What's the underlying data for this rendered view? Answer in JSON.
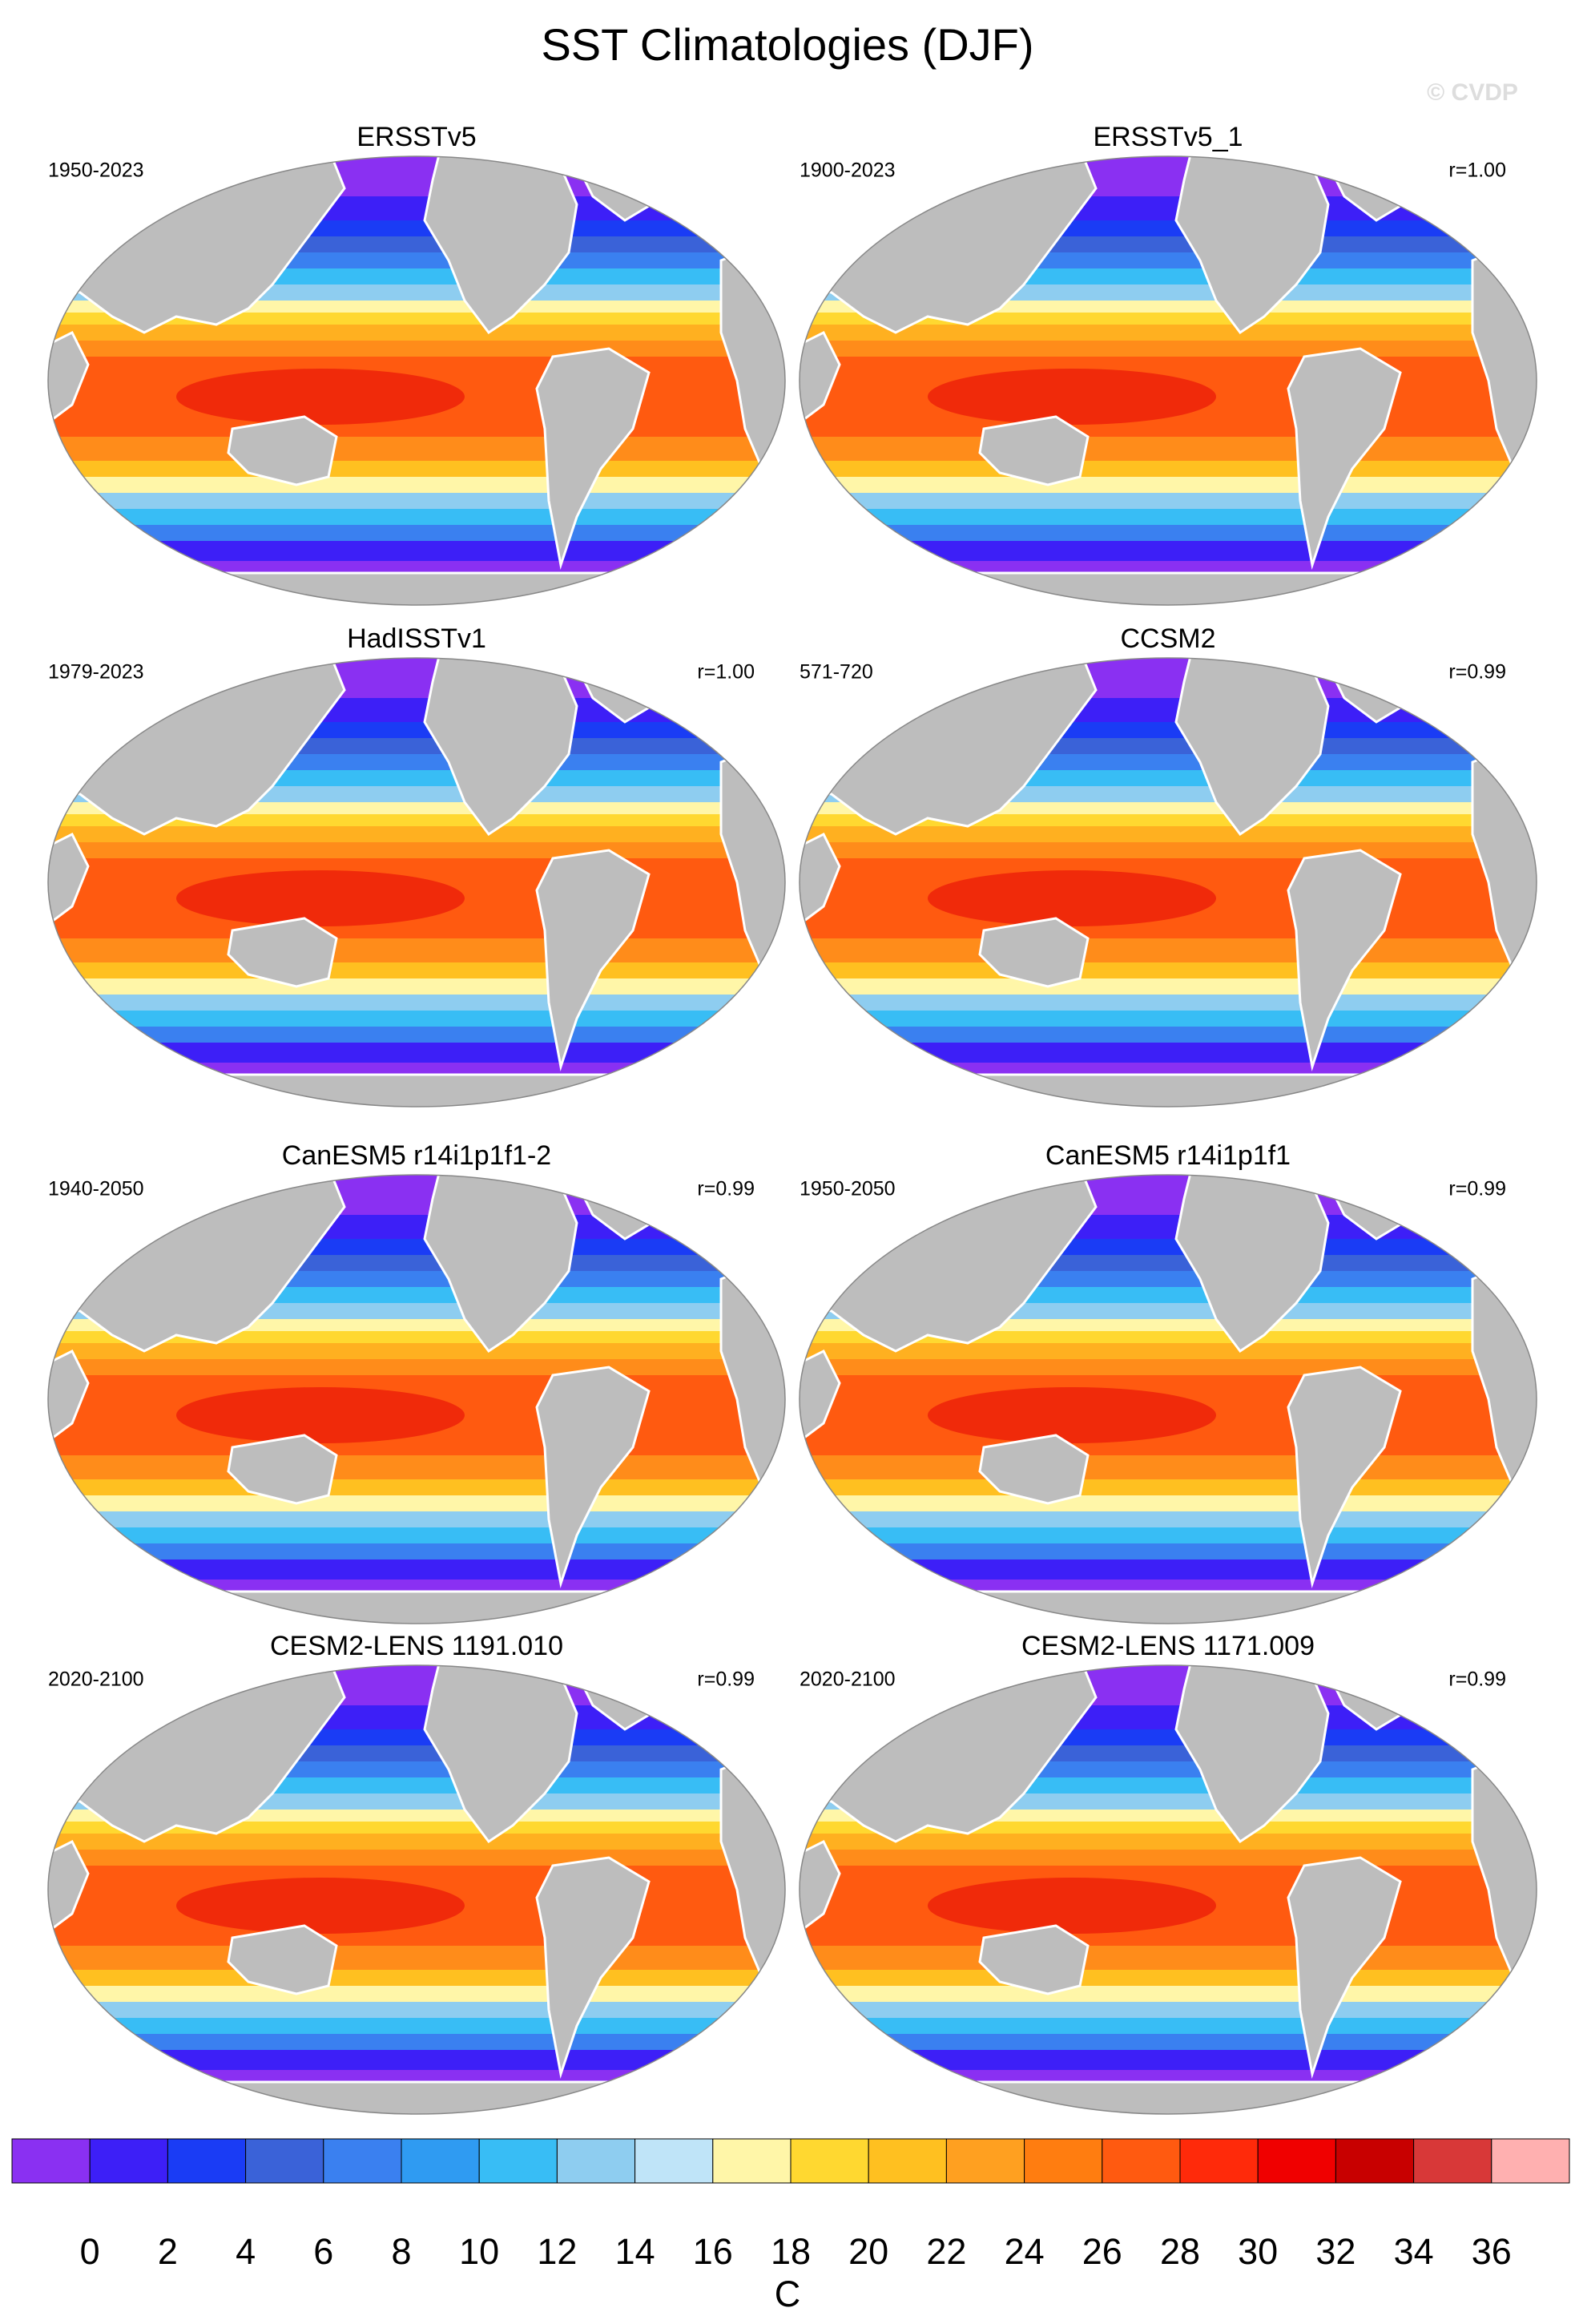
{
  "title": "SST Climatologies (DJF)",
  "watermark": "© CVDP",
  "panels": [
    {
      "title": "ERSSTv5",
      "period": "1950-2023"
    },
    {
      "title": "ERSSTv5_1",
      "period": "1900-2023",
      "r": "r=1.00"
    },
    {
      "title": "HadISSTv1",
      "period": "1979-2023",
      "r": "r=1.00"
    },
    {
      "title": "CCSM2",
      "period": "571-720",
      "r": "r=0.99"
    },
    {
      "title": "CanESM5 r14i1p1f1-2",
      "period": "1940-2050",
      "r": "r=0.99"
    },
    {
      "title": "CanESM5 r14i1p1f1",
      "period": "1950-2050",
      "r": "r=0.99"
    },
    {
      "title": "CESM2-LENS 1191.010",
      "period": "2020-2100",
      "r": "r=0.99"
    },
    {
      "title": "CESM2-LENS 1171.009",
      "period": "2020-2100",
      "r": "r=0.99"
    }
  ],
  "colorbar": {
    "colors": [
      "#8a30f2",
      "#3d1ff7",
      "#1a3cf5",
      "#3a62d8",
      "#3a80f0",
      "#2f9bf2",
      "#38bdf5",
      "#8ecdf0",
      "#bfe4f8",
      "#fff6a8",
      "#ffd830",
      "#ffc020",
      "#ffa020",
      "#ff7d10",
      "#ff5a10",
      "#ff2a0a",
      "#f00000",
      "#c80000",
      "#d83838",
      "#ffb0b0"
    ],
    "labels": [
      0,
      2,
      4,
      6,
      8,
      10,
      12,
      14,
      16,
      18,
      20,
      22,
      24,
      26,
      28,
      30,
      32,
      34,
      36
    ],
    "unit": "C"
  }
}
